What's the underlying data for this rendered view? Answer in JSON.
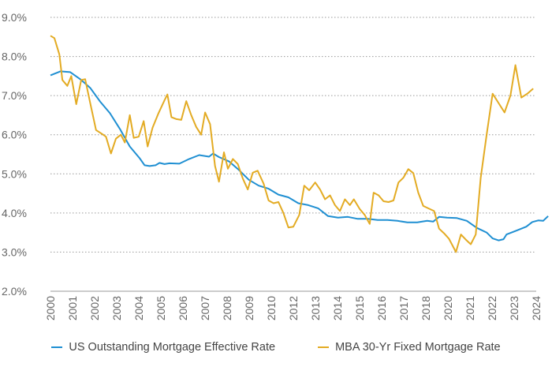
{
  "chart_data": {
    "type": "line",
    "title": "",
    "xlabel": "",
    "ylabel": "",
    "ylim": [
      2.0,
      9.0
    ],
    "xlim": [
      2000.0,
      2024.5
    ],
    "y_ticks": [
      "2.0%",
      "3.0%",
      "4.0%",
      "5.0%",
      "6.0%",
      "7.0%",
      "8.0%",
      "9.0%"
    ],
    "x_ticks": [
      "2000",
      "2001",
      "2002",
      "2003",
      "2004",
      "2005",
      "2006",
      "2007",
      "2008",
      "2009",
      "2010",
      "2012",
      "2013",
      "2014",
      "2015",
      "2016",
      "2017",
      "2018",
      "2020",
      "2021",
      "2022",
      "2023",
      "2024"
    ],
    "grid": "horizontal dotted",
    "legend_position": "bottom",
    "series": [
      {
        "name": "US Outstanding Mortgage Effective Rate",
        "color": "#1f8fd2",
        "points": [
          [
            2000.0,
            7.52
          ],
          [
            2000.5,
            7.62
          ],
          [
            2001.0,
            7.6
          ],
          [
            2001.5,
            7.42
          ],
          [
            2002.0,
            7.2
          ],
          [
            2002.5,
            6.85
          ],
          [
            2003.0,
            6.55
          ],
          [
            2003.5,
            6.15
          ],
          [
            2004.0,
            5.7
          ],
          [
            2004.5,
            5.4
          ],
          [
            2004.75,
            5.22
          ],
          [
            2005.0,
            5.2
          ],
          [
            2005.3,
            5.22
          ],
          [
            2005.5,
            5.28
          ],
          [
            2005.75,
            5.25
          ],
          [
            2006.0,
            5.27
          ],
          [
            2006.5,
            5.26
          ],
          [
            2007.0,
            5.38
          ],
          [
            2007.5,
            5.48
          ],
          [
            2008.0,
            5.44
          ],
          [
            2008.2,
            5.52
          ],
          [
            2008.5,
            5.43
          ],
          [
            2009.0,
            5.32
          ],
          [
            2009.5,
            5.1
          ],
          [
            2010.0,
            4.85
          ],
          [
            2010.5,
            4.7
          ],
          [
            2011.0,
            4.62
          ],
          [
            2011.5,
            4.47
          ],
          [
            2012.0,
            4.4
          ],
          [
            2012.5,
            4.25
          ],
          [
            2013.0,
            4.2
          ],
          [
            2013.5,
            4.12
          ],
          [
            2014.0,
            3.92
          ],
          [
            2014.5,
            3.88
          ],
          [
            2015.0,
            3.9
          ],
          [
            2015.5,
            3.85
          ],
          [
            2016.0,
            3.85
          ],
          [
            2016.5,
            3.82
          ],
          [
            2017.0,
            3.82
          ],
          [
            2017.5,
            3.8
          ],
          [
            2018.0,
            3.76
          ],
          [
            2018.5,
            3.76
          ],
          [
            2019.0,
            3.8
          ],
          [
            2019.3,
            3.78
          ],
          [
            2019.6,
            3.9
          ],
          [
            2020.0,
            3.88
          ],
          [
            2020.5,
            3.87
          ],
          [
            2021.0,
            3.8
          ],
          [
            2021.5,
            3.62
          ],
          [
            2022.0,
            3.5
          ],
          [
            2022.3,
            3.35
          ],
          [
            2022.6,
            3.3
          ],
          [
            2022.85,
            3.33
          ],
          [
            2023.0,
            3.45
          ],
          [
            2023.5,
            3.55
          ],
          [
            2024.0,
            3.65
          ],
          [
            2024.3,
            3.77
          ],
          [
            2024.6,
            3.81
          ],
          [
            2024.85,
            3.8
          ],
          [
            2025.1,
            3.92
          ]
        ]
      },
      {
        "name": "MBA 30-Yr Fixed Mortgage Rate",
        "color": "#e3ab23",
        "points": [
          [
            2000.0,
            8.53
          ],
          [
            2000.2,
            8.47
          ],
          [
            2000.45,
            8.05
          ],
          [
            2000.6,
            7.4
          ],
          [
            2000.85,
            7.25
          ],
          [
            2001.05,
            7.5
          ],
          [
            2001.3,
            6.78
          ],
          [
            2001.55,
            7.4
          ],
          [
            2001.75,
            7.42
          ],
          [
            2002.0,
            6.82
          ],
          [
            2002.3,
            6.12
          ],
          [
            2002.6,
            6.02
          ],
          [
            2002.8,
            5.95
          ],
          [
            2003.05,
            5.52
          ],
          [
            2003.3,
            5.9
          ],
          [
            2003.55,
            6.0
          ],
          [
            2003.75,
            5.8
          ],
          [
            2004.0,
            6.5
          ],
          [
            2004.2,
            5.92
          ],
          [
            2004.45,
            5.95
          ],
          [
            2004.7,
            6.35
          ],
          [
            2004.9,
            5.7
          ],
          [
            2005.15,
            6.18
          ],
          [
            2005.45,
            6.55
          ],
          [
            2005.75,
            6.88
          ],
          [
            2005.9,
            7.03
          ],
          [
            2006.1,
            6.45
          ],
          [
            2006.35,
            6.4
          ],
          [
            2006.6,
            6.38
          ],
          [
            2006.85,
            6.86
          ],
          [
            2007.1,
            6.5
          ],
          [
            2007.35,
            6.2
          ],
          [
            2007.6,
            6.0
          ],
          [
            2007.8,
            6.57
          ],
          [
            2008.05,
            6.27
          ],
          [
            2008.3,
            5.2
          ],
          [
            2008.5,
            4.8
          ],
          [
            2008.75,
            5.55
          ],
          [
            2008.95,
            5.13
          ],
          [
            2009.2,
            5.38
          ],
          [
            2009.45,
            5.25
          ],
          [
            2009.7,
            4.88
          ],
          [
            2009.95,
            4.6
          ],
          [
            2010.2,
            5.03
          ],
          [
            2010.45,
            5.08
          ],
          [
            2010.75,
            4.75
          ],
          [
            2011.0,
            4.32
          ],
          [
            2011.25,
            4.25
          ],
          [
            2011.5,
            4.28
          ],
          [
            2011.75,
            4.0
          ],
          [
            2012.0,
            3.63
          ],
          [
            2012.25,
            3.65
          ],
          [
            2012.55,
            3.95
          ],
          [
            2012.8,
            4.7
          ],
          [
            2013.05,
            4.58
          ],
          [
            2013.35,
            4.78
          ],
          [
            2013.6,
            4.6
          ],
          [
            2013.85,
            4.35
          ],
          [
            2014.1,
            4.45
          ],
          [
            2014.35,
            4.2
          ],
          [
            2014.6,
            4.05
          ],
          [
            2014.85,
            4.35
          ],
          [
            2015.1,
            4.2
          ],
          [
            2015.3,
            4.35
          ],
          [
            2015.6,
            4.1
          ],
          [
            2015.85,
            3.95
          ],
          [
            2016.1,
            3.72
          ],
          [
            2016.3,
            4.52
          ],
          [
            2016.55,
            4.45
          ],
          [
            2016.8,
            4.3
          ],
          [
            2017.05,
            4.28
          ],
          [
            2017.3,
            4.32
          ],
          [
            2017.55,
            4.78
          ],
          [
            2017.8,
            4.9
          ],
          [
            2018.05,
            5.12
          ],
          [
            2018.3,
            5.02
          ],
          [
            2018.55,
            4.52
          ],
          [
            2018.8,
            4.18
          ],
          [
            2019.05,
            4.12
          ],
          [
            2019.35,
            4.05
          ],
          [
            2019.6,
            3.6
          ],
          [
            2019.85,
            3.48
          ],
          [
            2020.1,
            3.34
          ],
          [
            2020.45,
            3.0
          ],
          [
            2020.7,
            3.45
          ],
          [
            2020.95,
            3.32
          ],
          [
            2021.2,
            3.2
          ],
          [
            2021.45,
            3.45
          ],
          [
            2021.7,
            4.9
          ],
          [
            2022.0,
            6.0
          ],
          [
            2022.3,
            7.05
          ],
          [
            2022.55,
            6.85
          ],
          [
            2022.9,
            6.57
          ],
          [
            2023.2,
            7.0
          ],
          [
            2023.45,
            7.78
          ],
          [
            2023.75,
            6.95
          ],
          [
            2024.05,
            7.05
          ],
          [
            2024.35,
            7.18
          ]
        ]
      }
    ]
  }
}
